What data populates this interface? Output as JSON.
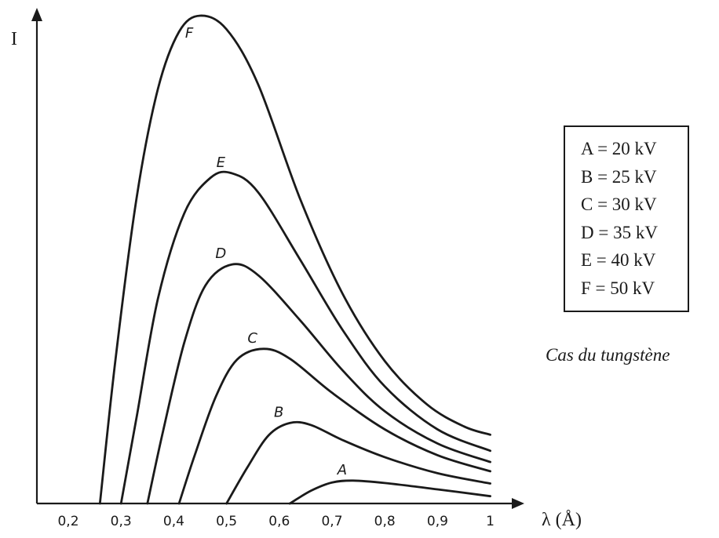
{
  "chart_data": {
    "type": "line",
    "title": "",
    "xlabel": "λ (Å)",
    "ylabel": "I",
    "xlim": [
      0.15,
      1.05
    ],
    "ylim": [
      0,
      100
    ],
    "x_ticks": [
      "0,2",
      "0,3",
      "0,4",
      "0,5",
      "0,6",
      "0,7",
      "0,8",
      "0,9",
      "1"
    ],
    "x_tick_values": [
      0.2,
      0.3,
      0.4,
      0.5,
      0.6,
      0.7,
      0.8,
      0.9,
      1.0
    ],
    "legend": {
      "placement": "right",
      "items": [
        "A = 20 kV",
        "B = 25 kV",
        "C = 30 kV",
        "D = 35 kV",
        "E = 40 kV",
        "F = 50 kV"
      ]
    },
    "annotation": "Cas du tungstène",
    "series": [
      {
        "name": "A",
        "points": [
          [
            0.62,
            0
          ],
          [
            0.66,
            2.6
          ],
          [
            0.7,
            4.3
          ],
          [
            0.74,
            4.7
          ],
          [
            0.8,
            4.2
          ],
          [
            0.9,
            2.9
          ],
          [
            1.0,
            1.5
          ]
        ]
      },
      {
        "name": "B",
        "points": [
          [
            0.5,
            0
          ],
          [
            0.54,
            7.5
          ],
          [
            0.58,
            14
          ],
          [
            0.62,
            16.5
          ],
          [
            0.66,
            16.1
          ],
          [
            0.72,
            13
          ],
          [
            0.8,
            9.5
          ],
          [
            0.9,
            6.2
          ],
          [
            1.0,
            4.1
          ]
        ]
      },
      {
        "name": "C",
        "points": [
          [
            0.41,
            0
          ],
          [
            0.44,
            10
          ],
          [
            0.48,
            22
          ],
          [
            0.52,
            29.5
          ],
          [
            0.57,
            31.7
          ],
          [
            0.62,
            29.7
          ],
          [
            0.7,
            22.7
          ],
          [
            0.8,
            15.2
          ],
          [
            0.9,
            9.9
          ],
          [
            1.0,
            6.6
          ]
        ]
      },
      {
        "name": "D",
        "points": [
          [
            0.35,
            0
          ],
          [
            0.38,
            15
          ],
          [
            0.42,
            33
          ],
          [
            0.46,
            44.7
          ],
          [
            0.51,
            49
          ],
          [
            0.56,
            46.8
          ],
          [
            0.64,
            37.5
          ],
          [
            0.72,
            27.3
          ],
          [
            0.8,
            18.9
          ],
          [
            0.9,
            12.3
          ],
          [
            1.0,
            8.5
          ]
        ]
      },
      {
        "name": "E",
        "points": [
          [
            0.3,
            0
          ],
          [
            0.33,
            18
          ],
          [
            0.37,
            42
          ],
          [
            0.42,
            59.5
          ],
          [
            0.47,
            66.8
          ],
          [
            0.51,
            67.7
          ],
          [
            0.56,
            63.8
          ],
          [
            0.64,
            49.9
          ],
          [
            0.72,
            35.6
          ],
          [
            0.8,
            24
          ],
          [
            0.9,
            15.2
          ],
          [
            1.0,
            10.8
          ]
        ]
      },
      {
        "name": "F",
        "points": [
          [
            0.26,
            0
          ],
          [
            0.29,
            30
          ],
          [
            0.33,
            63
          ],
          [
            0.37,
            85
          ],
          [
            0.41,
            96.7
          ],
          [
            0.45,
            100
          ],
          [
            0.5,
            97.2
          ],
          [
            0.56,
            85.9
          ],
          [
            0.64,
            62.3
          ],
          [
            0.72,
            43
          ],
          [
            0.8,
            29.2
          ],
          [
            0.88,
            20.3
          ],
          [
            0.95,
            15.8
          ],
          [
            1.0,
            14.1
          ]
        ]
      }
    ]
  }
}
